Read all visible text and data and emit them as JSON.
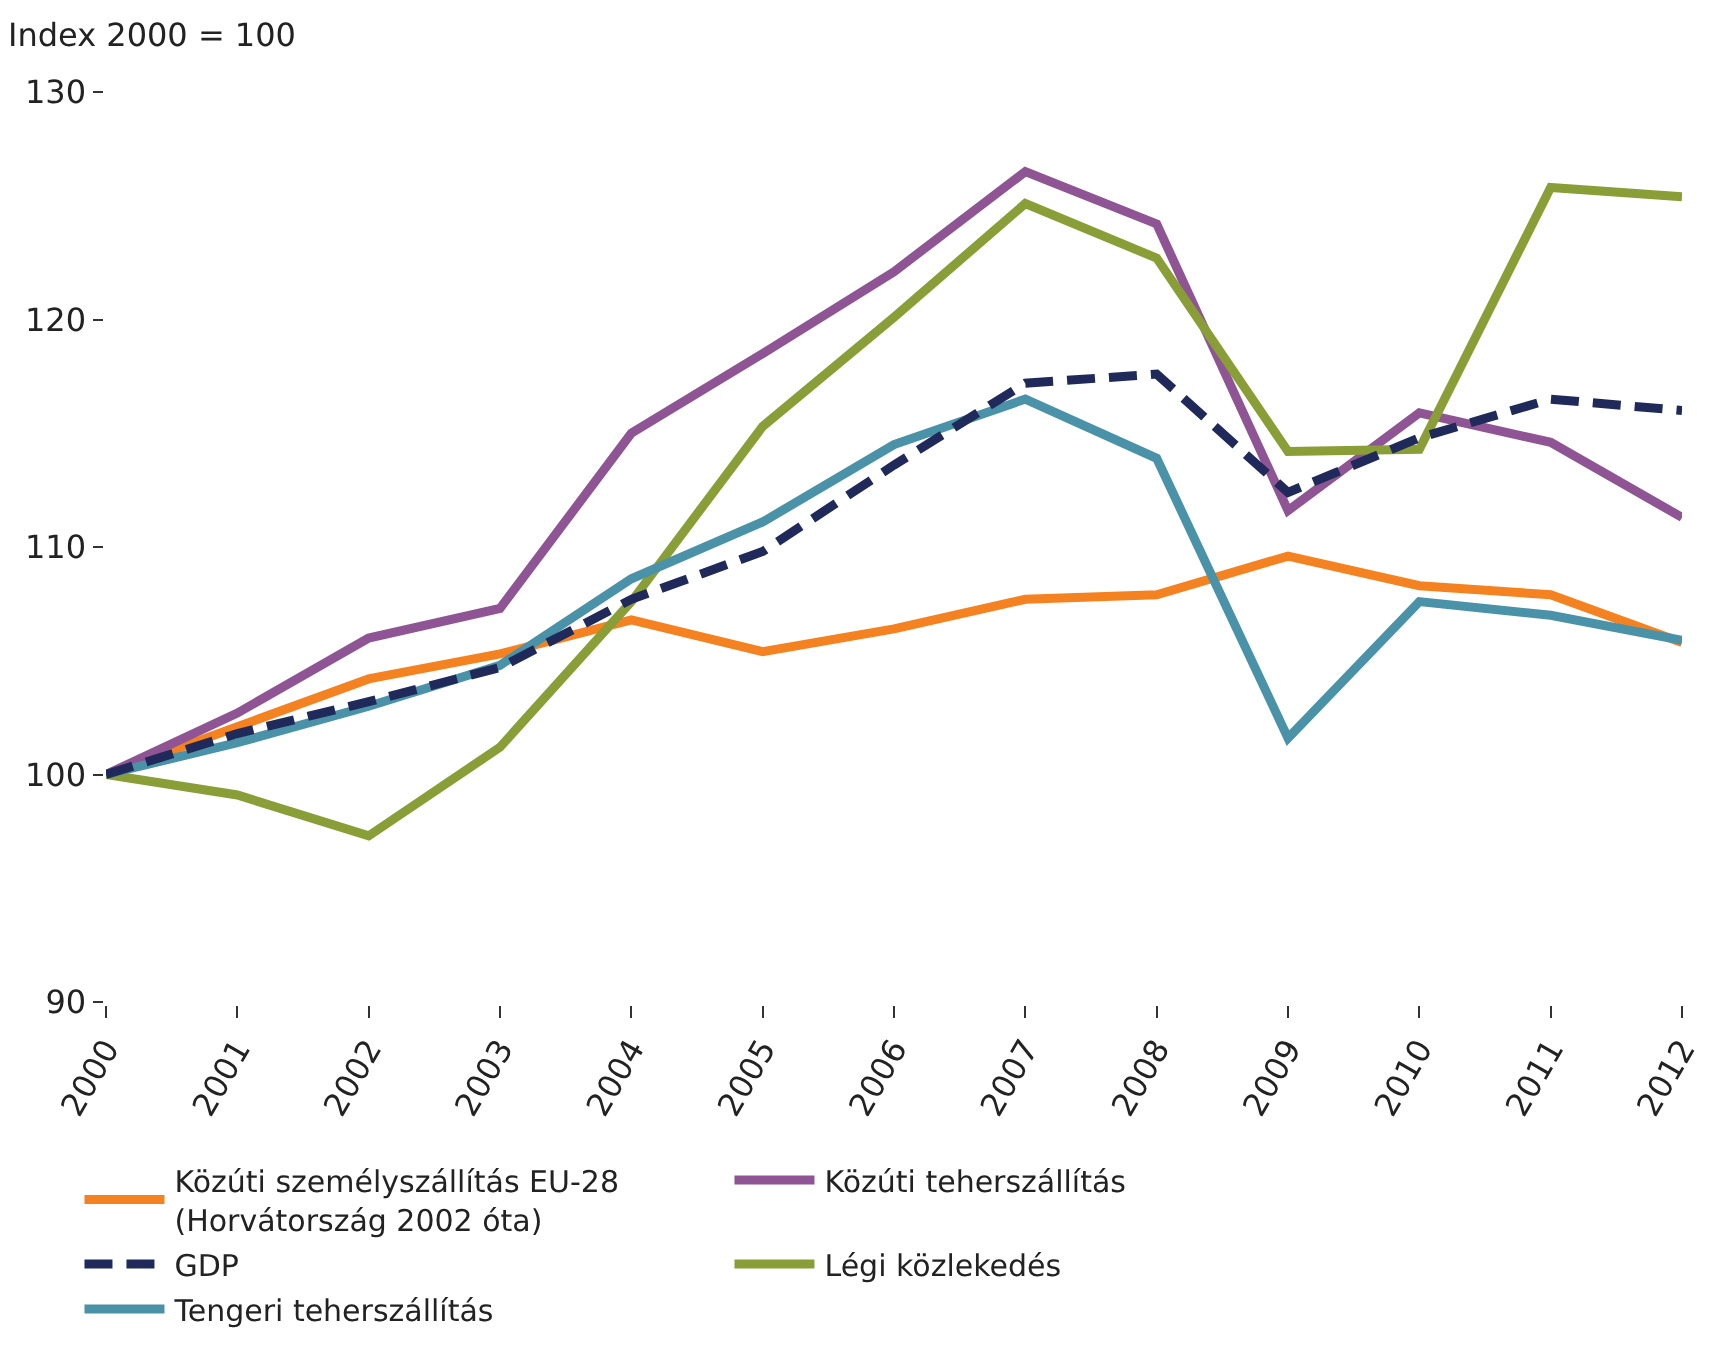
{
  "chart_data": {
    "type": "line",
    "ylabel": "Index 2000 = 100",
    "x": [
      2000,
      2001,
      2002,
      2003,
      2004,
      2005,
      2006,
      2007,
      2008,
      2009,
      2010,
      2011,
      2012
    ],
    "xlim": [
      2000,
      2012
    ],
    "xticks": [
      2000,
      2001,
      2002,
      2003,
      2004,
      2005,
      2006,
      2007,
      2008,
      2009,
      2010,
      2011,
      2012
    ],
    "ylim": [
      90,
      130
    ],
    "yticks": [
      90,
      100,
      110,
      120,
      130
    ],
    "grid": false,
    "legend": "bottom",
    "marker": "none",
    "series": [
      {
        "name": "Közúti személyszállítás EU-28\n(Horvátország 2002 óta)",
        "color": "#f58220",
        "values": [
          100,
          102.1,
          104.2,
          105.3,
          106.8,
          105.4,
          106.4,
          107.7,
          107.9,
          109.6,
          108.3,
          107.9,
          105.8
        ]
      },
      {
        "name": "Közúti teherszállítás",
        "color": "#8e5494",
        "values": [
          100,
          102.7,
          106.0,
          107.3,
          115.0,
          118.5,
          122.1,
          126.5,
          124.2,
          111.6,
          115.9,
          114.6,
          111.3
        ]
      },
      {
        "name": "GDP",
        "color": "#1f2a5a",
        "line_style": "dashed",
        "values": [
          100,
          101.8,
          103.2,
          104.7,
          107.7,
          109.8,
          113.6,
          117.2,
          117.6,
          112.4,
          114.8,
          116.5,
          116.0
        ]
      },
      {
        "name": "Légi közlekedés",
        "color": "#8a9e38",
        "values": [
          100,
          99.1,
          97.3,
          101.2,
          107.6,
          115.3,
          120.1,
          125.1,
          122.7,
          114.2,
          114.3,
          125.8,
          125.4
        ]
      },
      {
        "name": "Tengeri teherszállítás",
        "color": "#4a92a8",
        "values": [
          100,
          101.4,
          103.0,
          104.8,
          108.6,
          111.1,
          114.5,
          116.5,
          113.9,
          101.6,
          107.6,
          107.0,
          105.9
        ]
      }
    ]
  }
}
